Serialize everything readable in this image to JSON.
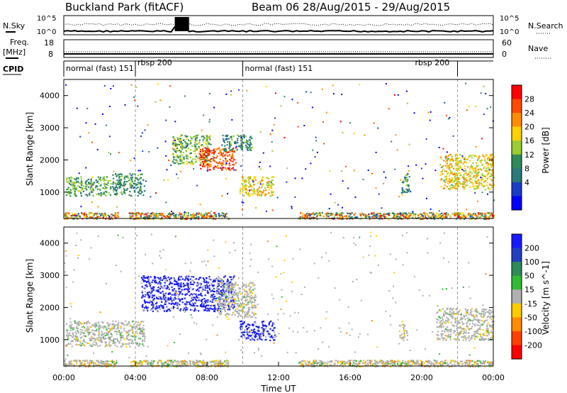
{
  "header": {
    "station": "Buckland Park (fitACF)",
    "beam_range": "Beam 06 28/Aug/2015 - 29/Aug/2015"
  },
  "noise_panel": {
    "left_label": "N.Sky",
    "left_ticks": [
      "10^5",
      "10^0"
    ],
    "right_label": "N.Search",
    "right_ticks": [
      "10^5",
      "10^0"
    ]
  },
  "freq_panel": {
    "left_label_1": "Freq.",
    "left_label_2": "[MHz]",
    "left_ticks": [
      "18",
      "8"
    ],
    "right_label": "Nave",
    "right_ticks": [
      "60",
      "0"
    ]
  },
  "cpid": {
    "label": "CPID",
    "segments": [
      {
        "text": "normal (fast) 151",
        "start_hour": 0
      },
      {
        "text": "rbsp 200",
        "start_hour": 4
      },
      {
        "text": "normal (fast) 151",
        "start_hour": 10
      },
      {
        "text": "rbsp 200",
        "start_hour": 22
      }
    ]
  },
  "power_colorbar": {
    "label": "Power [dB]",
    "ticks": [
      "28",
      "24",
      "20",
      "16",
      "12",
      "8",
      "4"
    ],
    "colors": [
      "#ff0000",
      "#ff4a00",
      "#ff8c00",
      "#ffd200",
      "#9acd32",
      "#2e8b57",
      "#2a7a7a",
      "#1a3cc8",
      "#0000ff"
    ]
  },
  "velocity_colorbar": {
    "label": "Velocity [m s^-1]",
    "ticks": [
      "200",
      "100",
      "50",
      "15",
      "-15",
      "-50",
      "-100",
      "-200"
    ],
    "colors": [
      "#1a1aff",
      "#2040c0",
      "#2e8b57",
      "#33bb33",
      "#b0b0b0",
      "#ffcc00",
      "#ff8c00",
      "#ff4000",
      "#ff0000"
    ]
  },
  "chart_data": [
    {
      "type": "heatmap",
      "title": "Power",
      "ylabel": "Slant Range [km]",
      "ylim": [
        180,
        4500
      ],
      "xlim": [
        0,
        24
      ],
      "y_ticks": [
        "1000",
        "2000",
        "3000",
        "4000"
      ],
      "regions": [
        {
          "x0": 0,
          "x1": 24,
          "y0": 180,
          "y1": 380,
          "level": "mixed"
        },
        {
          "x0": 0.1,
          "x1": 2.6,
          "y0": 900,
          "y1": 1500,
          "level": 12
        },
        {
          "x0": 2.7,
          "x1": 4.5,
          "y0": 900,
          "y1": 1600,
          "level": 10
        },
        {
          "x0": 6.0,
          "x1": 8.2,
          "y0": 1900,
          "y1": 2800,
          "level": 14
        },
        {
          "x0": 7.5,
          "x1": 9.6,
          "y0": 1700,
          "y1": 2400,
          "level": 26
        },
        {
          "x0": 8.8,
          "x1": 10.5,
          "y0": 2300,
          "y1": 2800,
          "level": 10
        },
        {
          "x0": 9.8,
          "x1": 11.7,
          "y0": 900,
          "y1": 1500,
          "level": 18
        },
        {
          "x0": 18.8,
          "x1": 19.3,
          "y0": 1000,
          "y1": 1600,
          "level": 10
        },
        {
          "x0": 21.0,
          "x1": 24,
          "y0": 1100,
          "y1": 2200,
          "level": 18
        }
      ]
    },
    {
      "type": "heatmap",
      "title": "Velocity",
      "ylabel": "Slant Range [km]",
      "xlabel": "Time UT",
      "ylim": [
        180,
        4500
      ],
      "xlim": [
        0,
        24
      ],
      "y_ticks": [
        "1000",
        "2000",
        "3000",
        "4000"
      ],
      "x_ticks": [
        "00:00",
        "04:00",
        "08:00",
        "12:00",
        "16:00",
        "20:00",
        "00:00"
      ],
      "regions": [
        {
          "x0": 0,
          "x1": 24,
          "y0": 180,
          "y1": 380,
          "level": "mixed"
        },
        {
          "x0": 0.1,
          "x1": 4.5,
          "y0": 800,
          "y1": 1600,
          "level": 0
        },
        {
          "x0": 4.3,
          "x1": 9.5,
          "y0": 1900,
          "y1": 3000,
          "level": 200
        },
        {
          "x0": 8.5,
          "x1": 10.7,
          "y0": 1700,
          "y1": 2800,
          "level": 0
        },
        {
          "x0": 9.8,
          "x1": 11.8,
          "y0": 1000,
          "y1": 1600,
          "level": 200
        },
        {
          "x0": 18.7,
          "x1": 19.2,
          "y0": 1000,
          "y1": 1500,
          "level": 0
        },
        {
          "x0": 20.8,
          "x1": 24,
          "y0": 1000,
          "y1": 2000,
          "level": 0
        }
      ]
    }
  ]
}
